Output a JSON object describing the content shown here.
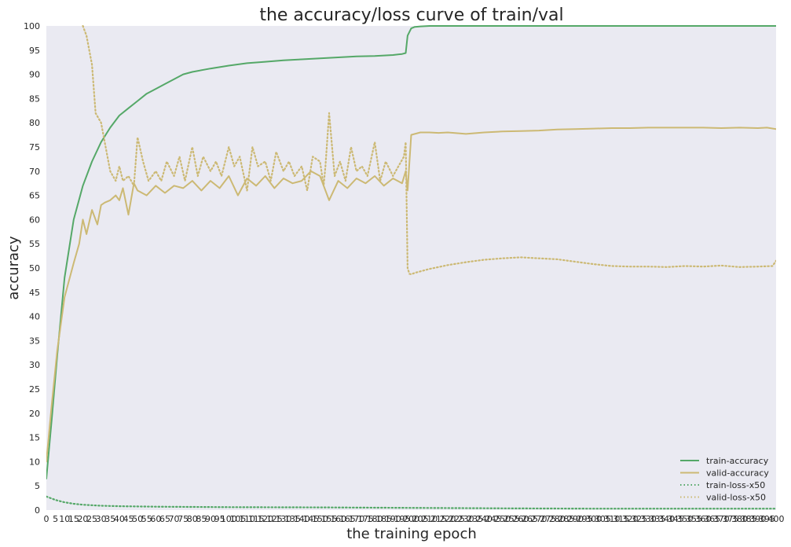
{
  "chart_data": {
    "type": "line",
    "title": "the accuracy/loss curve of train/val",
    "xlabel": "the training epoch",
    "ylabel": "accuracy",
    "xlim": [
      0,
      400
    ],
    "ylim": [
      0,
      100
    ],
    "grid": false,
    "background": "#EAEAF2",
    "legend_position": "bottom-right",
    "x_ticks": [
      0,
      5,
      10,
      15,
      20,
      25,
      30,
      35,
      40,
      45,
      50,
      55,
      60,
      65,
      70,
      75,
      80,
      85,
      90,
      95,
      100,
      105,
      110,
      115,
      120,
      125,
      130,
      135,
      140,
      145,
      150,
      155,
      160,
      165,
      170,
      175,
      180,
      185,
      190,
      195,
      200,
      205,
      210,
      215,
      220,
      225,
      230,
      235,
      240,
      245,
      250,
      255,
      260,
      265,
      270,
      275,
      280,
      285,
      290,
      295,
      300,
      305,
      310,
      315,
      320,
      325,
      330,
      335,
      340,
      345,
      350,
      355,
      360,
      365,
      370,
      375,
      380,
      385,
      390,
      395,
      400
    ],
    "y_ticks": [
      0,
      5,
      10,
      15,
      20,
      25,
      30,
      35,
      40,
      45,
      50,
      55,
      60,
      65,
      70,
      75,
      80,
      85,
      90,
      95,
      100
    ],
    "series": [
      {
        "name": "train-accuracy",
        "color": "#55A868",
        "style": "solid",
        "x": [
          0,
          3,
          6,
          10,
          15,
          20,
          25,
          30,
          35,
          40,
          45,
          50,
          55,
          60,
          65,
          70,
          75,
          80,
          90,
          100,
          110,
          120,
          130,
          140,
          150,
          160,
          170,
          180,
          190,
          195,
          197,
          198,
          200,
          202,
          205,
          210,
          220,
          250,
          300,
          350,
          400
        ],
        "y": [
          6.5,
          19,
          32,
          48,
          60,
          67,
          72,
          76,
          79,
          81.5,
          83,
          84.5,
          86,
          87,
          88,
          89,
          90,
          90.5,
          91.2,
          91.8,
          92.3,
          92.6,
          92.9,
          93.1,
          93.3,
          93.5,
          93.7,
          93.8,
          94,
          94.2,
          94.4,
          98,
          99.5,
          99.8,
          99.9,
          100,
          100,
          100,
          100,
          100,
          100
        ]
      },
      {
        "name": "valid-accuracy",
        "color": "#CCB974",
        "style": "solid",
        "x": [
          0,
          3,
          6,
          10,
          15,
          18,
          20,
          22,
          25,
          28,
          30,
          32,
          35,
          38,
          40,
          42,
          45,
          48,
          50,
          55,
          60,
          65,
          70,
          75,
          80,
          85,
          90,
          95,
          100,
          105,
          110,
          115,
          120,
          125,
          130,
          135,
          140,
          145,
          150,
          155,
          160,
          165,
          170,
          175,
          180,
          185,
          190,
          195,
          197,
          198,
          200,
          205,
          210,
          215,
          220,
          230,
          240,
          250,
          260,
          270,
          280,
          290,
          300,
          310,
          320,
          330,
          340,
          350,
          360,
          370,
          380,
          390,
          395,
          400
        ],
        "y": [
          10,
          22,
          33,
          44,
          51,
          55,
          60,
          57,
          62,
          59,
          63,
          63.5,
          64,
          65,
          64,
          66.5,
          61,
          67.5,
          66,
          65,
          67,
          65.5,
          67,
          66.5,
          68,
          66,
          68,
          66.5,
          69,
          65,
          68.5,
          67,
          69,
          66.5,
          68.5,
          67.5,
          68,
          70,
          69,
          64,
          68,
          66.5,
          68.5,
          67.5,
          69,
          67,
          68.5,
          67.5,
          70,
          66,
          77.5,
          78,
          78,
          77.9,
          78,
          77.7,
          78,
          78.2,
          78.3,
          78.4,
          78.6,
          78.7,
          78.8,
          78.9,
          78.9,
          79,
          79,
          79,
          79,
          78.9,
          79,
          78.9,
          79,
          78.7
        ]
      },
      {
        "name": "train-loss-x50",
        "color": "#55A868",
        "style": "dotted",
        "x": [
          0,
          5,
          10,
          15,
          20,
          30,
          40,
          50,
          60,
          80,
          100,
          150,
          200,
          250,
          300,
          350,
          400
        ],
        "y": [
          2.8,
          2.1,
          1.6,
          1.3,
          1.1,
          0.9,
          0.8,
          0.75,
          0.7,
          0.65,
          0.6,
          0.55,
          0.45,
          0.35,
          0.3,
          0.3,
          0.3
        ]
      },
      {
        "name": "valid-loss-x50",
        "color": "#CCB974",
        "style": "dotted",
        "x": [
          20,
          22,
          25,
          27,
          30,
          32,
          35,
          38,
          40,
          42,
          45,
          48,
          50,
          53,
          56,
          60,
          63,
          66,
          70,
          73,
          76,
          80,
          83,
          86,
          90,
          93,
          96,
          100,
          103,
          106,
          110,
          113,
          116,
          120,
          123,
          126,
          130,
          133,
          136,
          140,
          143,
          146,
          150,
          152,
          153,
          155,
          158,
          161,
          164,
          167,
          170,
          173,
          176,
          180,
          183,
          186,
          190,
          193,
          196,
          197,
          198,
          199,
          200,
          202,
          205,
          210,
          215,
          220,
          230,
          240,
          250,
          260,
          270,
          280,
          290,
          300,
          310,
          320,
          330,
          340,
          350,
          360,
          370,
          380,
          390,
          398,
          400
        ],
        "y": [
          100,
          98,
          92,
          82,
          80,
          76,
          70,
          68,
          71,
          68,
          69,
          67,
          77,
          72,
          68,
          70,
          68,
          72,
          69,
          73,
          68,
          75,
          69,
          73,
          70,
          72,
          69,
          75,
          71,
          73,
          66,
          75,
          71,
          72,
          68,
          74,
          70,
          72,
          69,
          71,
          66,
          73,
          72,
          67,
          71,
          82,
          69,
          72,
          68,
          75,
          70,
          71,
          69,
          76,
          68,
          72,
          69,
          71,
          73,
          76,
          50,
          48.8,
          48.7,
          49,
          49.3,
          49.8,
          50.2,
          50.6,
          51.2,
          51.7,
          52,
          52.2,
          52,
          51.8,
          51.3,
          50.8,
          50.4,
          50.3,
          50.3,
          50.2,
          50.4,
          50.3,
          50.5,
          50.2,
          50.3,
          50.4,
          51.5
        ]
      }
    ]
  }
}
